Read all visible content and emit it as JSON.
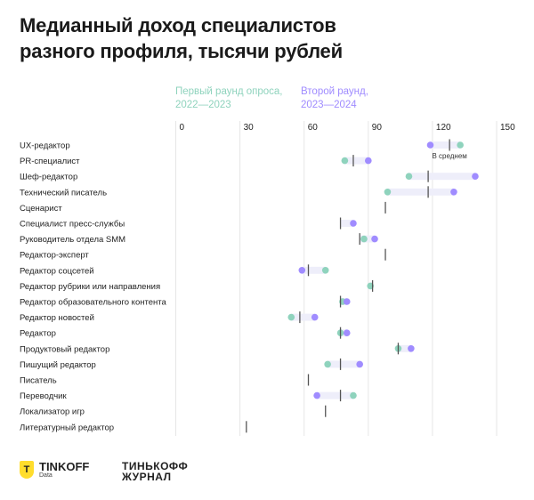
{
  "title": "Медианный доход специалистов\nразного профиля, тысячи рублей",
  "legend": {
    "round1": "Первый раунд опроса,\n2022—2023",
    "round2": "Второй раунд,\n2023—2024"
  },
  "colors": {
    "round1": "#8fd3bd",
    "round2": "#a08cff",
    "median": "#555555",
    "range": "#eeeefa",
    "grid": "#e6e6e6"
  },
  "annotation": "В среднем",
  "chart_data": {
    "type": "dumbbell",
    "xlim": [
      0,
      150
    ],
    "xticks": [
      0,
      30,
      60,
      90,
      120,
      150
    ],
    "grid": true,
    "legend_position": "top",
    "series_names": [
      "Первый раунд опроса, 2022—2023",
      "Второй раунд, 2023—2024",
      "В среднем"
    ],
    "rows": [
      {
        "label": "UX-редактор",
        "round1": 133,
        "round2": 119,
        "median": 128
      },
      {
        "label": "PR-специалист",
        "round1": 79,
        "round2": 90,
        "median": 83
      },
      {
        "label": "Шеф-редактор",
        "round1": 109,
        "round2": 140,
        "median": 118
      },
      {
        "label": "Технический писатель",
        "round1": 99,
        "round2": 130,
        "median": 118
      },
      {
        "label": "Сценарист",
        "round1": null,
        "round2": null,
        "median": 98
      },
      {
        "label": "Специалист пресс-службы",
        "round1": null,
        "round2": 83,
        "median": 77
      },
      {
        "label": "Руководитель отдела SMM",
        "round1": 88,
        "round2": 93,
        "median": 86
      },
      {
        "label": "Редактор-эксперт",
        "round1": null,
        "round2": null,
        "median": 98
      },
      {
        "label": "Редактор соцсетей",
        "round1": 70,
        "round2": 59,
        "median": 62
      },
      {
        "label": "Редактор рубрики или направления",
        "round1": 91,
        "round2": null,
        "median": 92
      },
      {
        "label": "Редактор образовательного контента",
        "round1": 78,
        "round2": 80,
        "median": 77
      },
      {
        "label": "Редактор новостей",
        "round1": 54,
        "round2": 65,
        "median": 58
      },
      {
        "label": "Редактор",
        "round1": 77,
        "round2": 80,
        "median": 77
      },
      {
        "label": "Продуктовый редактор",
        "round1": 104,
        "round2": 110,
        "median": 104
      },
      {
        "label": "Пишущий редактор",
        "round1": 71,
        "round2": 86,
        "median": 77
      },
      {
        "label": "Писатель",
        "round1": null,
        "round2": null,
        "median": 62
      },
      {
        "label": "Переводчик",
        "round1": 83,
        "round2": 66,
        "median": 77
      },
      {
        "label": "Локализатор игр",
        "round1": null,
        "round2": null,
        "median": 70
      },
      {
        "label": "Литературный редактор",
        "round1": null,
        "round2": null,
        "median": 33
      }
    ]
  },
  "logos": {
    "tinkoff_data": {
      "icon": "shield-logo",
      "letter": "T",
      "name": "TINKOFF",
      "sub": "Data"
    },
    "tinkoff_journal": "ТИНЬКОФФ\nЖУРНАЛ"
  }
}
